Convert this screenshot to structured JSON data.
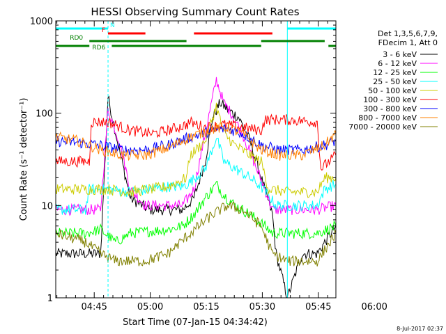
{
  "chart_data": {
    "type": "line",
    "title": "HESSI Observing Summary Count Rates",
    "xlabel": "Start Time (07-Jan-15 04:34:42)",
    "ylabel": "Count Rate (s⁻¹ detector⁻¹)",
    "yscale": "log",
    "ylim": [
      1,
      1000
    ],
    "xlim_minutes": [
      0,
      75
    ],
    "x_ticks": [
      "04:45",
      "05:00",
      "05:15",
      "05:30",
      "05:45",
      "06:00"
    ],
    "y_ticks": [
      "1",
      "10",
      "100",
      "1000"
    ],
    "legend_header": [
      "Det 1,3,5,6,7,9,",
      "FDecim 1, Att 0"
    ],
    "legend_position": "right",
    "series": [
      {
        "name": "3 - 6 keV",
        "color": "#000000",
        "points": [
          [
            0,
            3
          ],
          [
            8,
            3
          ],
          [
            12,
            3
          ],
          [
            14,
            150
          ],
          [
            17,
            40
          ],
          [
            20,
            12
          ],
          [
            25,
            9
          ],
          [
            30,
            9
          ],
          [
            34,
            9
          ],
          [
            37,
            12
          ],
          [
            40,
            30
          ],
          [
            42,
            90
          ],
          [
            44,
            130
          ],
          [
            46,
            110
          ],
          [
            49,
            90
          ],
          [
            52,
            50
          ],
          [
            55,
            20
          ],
          [
            58,
            8
          ],
          [
            59,
            3
          ],
          [
            62,
            1
          ],
          [
            66,
            3
          ],
          [
            70,
            3
          ],
          [
            75,
            6
          ]
        ]
      },
      {
        "name": "6 - 12 keV",
        "color": "#ff00ff",
        "points": [
          [
            0,
            9
          ],
          [
            8,
            9
          ],
          [
            12,
            9
          ],
          [
            14,
            110
          ],
          [
            17,
            50
          ],
          [
            20,
            15
          ],
          [
            24,
            10
          ],
          [
            30,
            10
          ],
          [
            34,
            10
          ],
          [
            37,
            15
          ],
          [
            40,
            60
          ],
          [
            43,
            230
          ],
          [
            45,
            130
          ],
          [
            47,
            100
          ],
          [
            50,
            60
          ],
          [
            53,
            30
          ],
          [
            56,
            15
          ],
          [
            58,
            9
          ],
          [
            62,
            9
          ],
          [
            70,
            9
          ],
          [
            75,
            10
          ]
        ]
      },
      {
        "name": "12 - 25 keV",
        "color": "#00ff00",
        "points": [
          [
            0,
            5
          ],
          [
            8,
            5
          ],
          [
            12,
            5.5
          ],
          [
            16,
            4
          ],
          [
            20,
            5
          ],
          [
            30,
            5.5
          ],
          [
            34,
            6
          ],
          [
            37,
            8
          ],
          [
            40,
            12
          ],
          [
            43,
            17
          ],
          [
            45,
            13
          ],
          [
            48,
            10
          ],
          [
            52,
            8
          ],
          [
            56,
            6
          ],
          [
            58,
            5
          ],
          [
            62,
            5
          ],
          [
            70,
            5
          ],
          [
            75,
            6
          ]
        ]
      },
      {
        "name": "25 - 50 keV",
        "color": "#00ffff",
        "points": [
          [
            0,
            9
          ],
          [
            8,
            9
          ],
          [
            9,
            15
          ],
          [
            14,
            15
          ],
          [
            20,
            14
          ],
          [
            30,
            16
          ],
          [
            34,
            16
          ],
          [
            36,
            18
          ],
          [
            40,
            25
          ],
          [
            43,
            55
          ],
          [
            45,
            30
          ],
          [
            48,
            25
          ],
          [
            52,
            20
          ],
          [
            55,
            16
          ],
          [
            59,
            10
          ],
          [
            62,
            10
          ],
          [
            70,
            10
          ],
          [
            72,
            15
          ],
          [
            75,
            17
          ]
        ]
      },
      {
        "name": "50 - 100 keV",
        "color": "#cccc00",
        "points": [
          [
            0,
            15
          ],
          [
            9,
            15
          ],
          [
            14,
            15
          ],
          [
            20,
            14
          ],
          [
            30,
            16
          ],
          [
            35,
            20
          ],
          [
            36,
            35
          ],
          [
            40,
            50
          ],
          [
            43,
            120
          ],
          [
            45,
            60
          ],
          [
            48,
            45
          ],
          [
            52,
            35
          ],
          [
            55,
            30
          ],
          [
            57,
            15
          ],
          [
            62,
            14
          ],
          [
            70,
            14
          ],
          [
            72,
            20
          ],
          [
            75,
            20
          ]
        ]
      },
      {
        "name": "100 - 300 keV",
        "color": "#ff0000",
        "points": [
          [
            0,
            30
          ],
          [
            9,
            30
          ],
          [
            9.5,
            80
          ],
          [
            14,
            80
          ],
          [
            20,
            65
          ],
          [
            26,
            60
          ],
          [
            30,
            65
          ],
          [
            35,
            75
          ],
          [
            36,
            80
          ],
          [
            40,
            70
          ],
          [
            45,
            75
          ],
          [
            50,
            70
          ],
          [
            55,
            65
          ],
          [
            56,
            85
          ],
          [
            62,
            85
          ],
          [
            70,
            80
          ],
          [
            71,
            25
          ],
          [
            75,
            35
          ]
        ]
      },
      {
        "name": "300 - 800 keV",
        "color": "#0000ff",
        "points": [
          [
            0,
            50
          ],
          [
            6,
            48
          ],
          [
            12,
            45
          ],
          [
            18,
            40
          ],
          [
            24,
            40
          ],
          [
            30,
            45
          ],
          [
            36,
            55
          ],
          [
            42,
            65
          ],
          [
            46,
            68
          ],
          [
            50,
            60
          ],
          [
            55,
            45
          ],
          [
            60,
            40
          ],
          [
            66,
            40
          ],
          [
            72,
            45
          ],
          [
            75,
            50
          ]
        ]
      },
      {
        "name": "800 - 7000 keV",
        "color": "#ff8000",
        "points": [
          [
            0,
            55
          ],
          [
            6,
            50
          ],
          [
            12,
            40
          ],
          [
            18,
            35
          ],
          [
            24,
            35
          ],
          [
            30,
            42
          ],
          [
            36,
            55
          ],
          [
            42,
            68
          ],
          [
            46,
            70
          ],
          [
            50,
            60
          ],
          [
            55,
            40
          ],
          [
            60,
            35
          ],
          [
            66,
            35
          ],
          [
            72,
            45
          ],
          [
            75,
            60
          ]
        ]
      },
      {
        "name": "7000 - 20000 keV",
        "color": "#808000",
        "points": [
          [
            0,
            5
          ],
          [
            8,
            4
          ],
          [
            12,
            3
          ],
          [
            16,
            2.5
          ],
          [
            24,
            2.5
          ],
          [
            30,
            3
          ],
          [
            36,
            5
          ],
          [
            42,
            8
          ],
          [
            46,
            10
          ],
          [
            50,
            9
          ],
          [
            55,
            6
          ],
          [
            58,
            3
          ],
          [
            62,
            2.5
          ],
          [
            70,
            2.5
          ],
          [
            75,
            5
          ]
        ]
      }
    ],
    "state_bars": [
      {
        "label": "N",
        "color": "#00ffff",
        "segments": [
          [
            0,
            14
          ],
          [
            62,
            75
          ]
        ]
      },
      {
        "label": "F",
        "color": "#ff0000",
        "segments": [
          [
            14,
            24
          ],
          [
            37,
            58
          ]
        ]
      },
      {
        "label": "RD0",
        "color": "#008000",
        "segments": [
          [
            9,
            35
          ],
          [
            55,
            72
          ]
        ]
      },
      {
        "label": "RD6",
        "color": "#008000",
        "segments": [
          [
            0,
            9
          ],
          [
            15,
            55
          ],
          [
            73,
            75
          ]
        ]
      }
    ]
  },
  "footer": {
    "date_stamp": "8-Jul-2017 02:37"
  }
}
